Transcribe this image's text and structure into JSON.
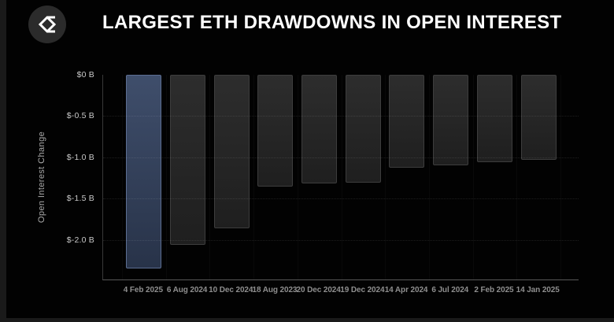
{
  "page": {
    "background": "#1a1a1a",
    "card_background": "#020202"
  },
  "header": {
    "logo": "sigma-diamond-logo",
    "title": "LARGEST ETH DRAWDOWNS IN OPEN INTEREST"
  },
  "chart_data": {
    "type": "bar",
    "title": "LARGEST ETH DRAWDOWNS IN OPEN INTEREST",
    "xlabel": "",
    "ylabel": "Open Interest Change",
    "unit_format": "$ billions",
    "categories": [
      "4 Feb 2025",
      "6 Aug 2024",
      "10 Dec 2024",
      "18 Aug 2023",
      "20 Dec 2024",
      "19 Dec 2024",
      "14 Apr 2024",
      "6 Jul 2024",
      "2 Feb 2025",
      "14 Jan 2025"
    ],
    "values": [
      -2.35,
      -2.06,
      -1.86,
      -1.35,
      -1.32,
      -1.31,
      -1.13,
      -1.1,
      -1.06,
      -1.03
    ],
    "highlight_index": 0,
    "ylim": [
      -2.48,
      0
    ],
    "yticks": [
      {
        "value": 0,
        "label": "$0 B"
      },
      {
        "value": -0.5,
        "label": "$-0.5 B"
      },
      {
        "value": -1.0,
        "label": "$-1.0 B"
      },
      {
        "value": -1.5,
        "label": "$-1.5 B"
      },
      {
        "value": -2.0,
        "label": "$-2.0 B"
      }
    ],
    "grid": true,
    "legend": null,
    "colors": {
      "bar_default_top": "#2d2d2d",
      "bar_default_bottom": "#1f1f1f",
      "bar_default_border": "#3d3d3d",
      "bar_highlight_top": "#3f4e6b",
      "bar_highlight_bottom": "#283349",
      "bar_highlight_border": "#5c6e92",
      "axis_y": "#383838",
      "axis_x": "#585858",
      "grid_line": "rgba(255,255,255,0.11)",
      "title_text": "#ffffff",
      "tick_text": "#c9c9c9",
      "category_text": "#8f8f8f"
    }
  }
}
